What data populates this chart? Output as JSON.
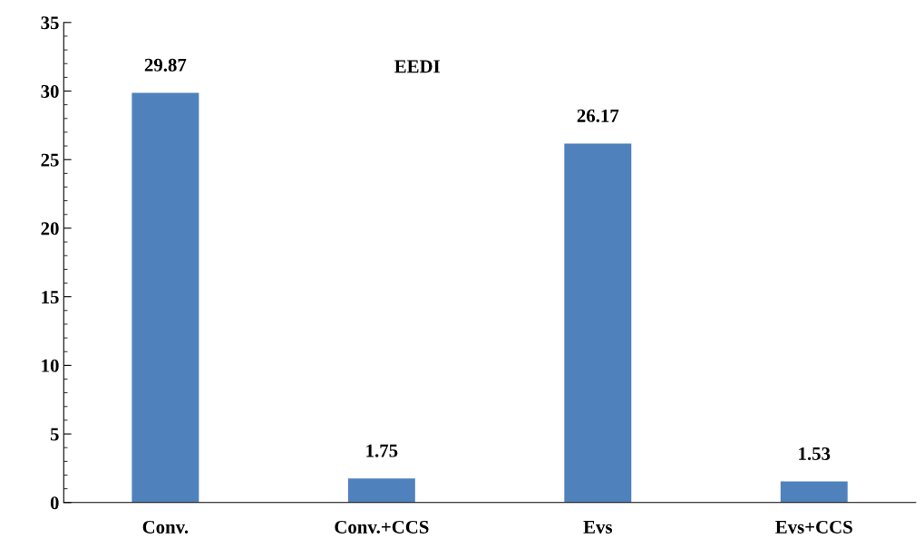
{
  "chart_data": {
    "type": "bar",
    "title": "EEDI",
    "categories": [
      "Conv.",
      "Conv.+CCS",
      "Evs",
      "Evs+CCS"
    ],
    "values": [
      29.87,
      1.75,
      26.17,
      1.53
    ],
    "color": "#4f81bd",
    "data_labels": true,
    "ylim": [
      0,
      35
    ],
    "yticks": [
      0,
      5,
      10,
      15,
      20,
      25,
      30,
      35
    ],
    "grid": false,
    "legend": false
  }
}
